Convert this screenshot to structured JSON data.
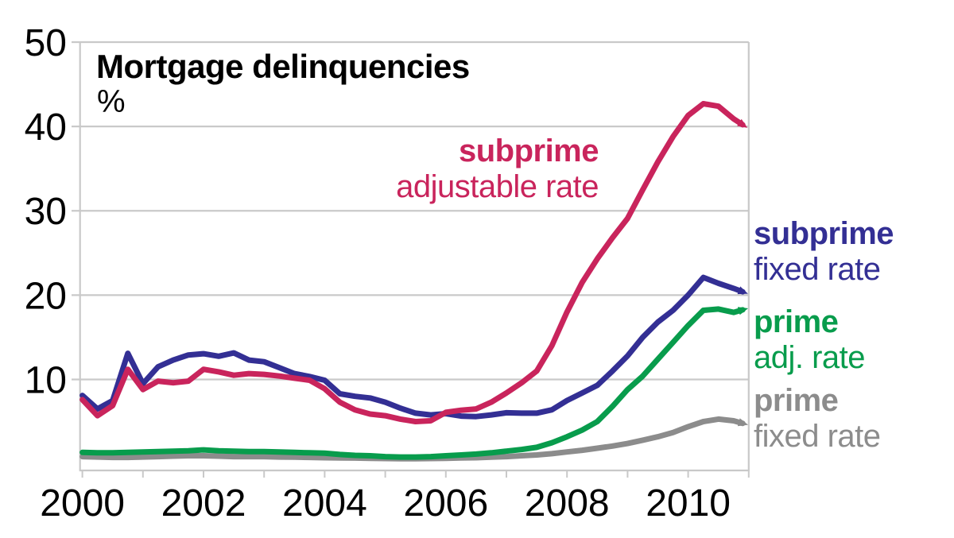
{
  "figure": {
    "title": "Mortgage delinquencies",
    "unit_label": "%"
  },
  "series_labels": {
    "subprime_adjustable": {
      "line1": "subprime",
      "line2": "adjustable rate"
    },
    "subprime_fixed": {
      "line1": "subprime",
      "line2": "fixed rate"
    },
    "prime_adjustable": {
      "line1": "prime",
      "line2": "adj. rate"
    },
    "prime_fixed": {
      "line1": "prime",
      "line2": "fixed rate"
    }
  },
  "colors": {
    "subprime_adjustable": "#C9245C",
    "subprime_fixed": "#332F94",
    "prime_adjustable": "#089C4C",
    "prime_fixed": "#8C8C8C",
    "frame": "#C9C9C9",
    "text": "#000000",
    "background": "#FFFFFF"
  },
  "chart_data": {
    "type": "line",
    "title": "Mortgage delinquencies",
    "ylabel": "%",
    "xlabel": "",
    "grid": true,
    "legend_position": "direct-line-labels",
    "xlim": [
      2000,
      2011
    ],
    "ylim": [
      -0.85,
      50
    ],
    "y_axis": {
      "ticks": [
        10,
        20,
        30,
        40,
        50
      ],
      "labels": [
        "10",
        "20",
        "30",
        "40",
        "50"
      ]
    },
    "x_axis": {
      "ticks": [
        2000,
        2002,
        2004,
        2006,
        2008,
        2010
      ],
      "labels": [
        "2000",
        "2002",
        "2004",
        "2006",
        "2008",
        "2010"
      ],
      "minor_ticks": [
        2000,
        2001,
        2002,
        2003,
        2004,
        2005,
        2006,
        2007,
        2008,
        2009,
        2010,
        2011
      ]
    },
    "x": [
      2000.0,
      2000.25,
      2000.5,
      2000.75,
      2001.0,
      2001.25,
      2001.5,
      2001.75,
      2002.0,
      2002.25,
      2002.5,
      2002.75,
      2003.0,
      2003.25,
      2003.5,
      2003.75,
      2004.0,
      2004.25,
      2004.5,
      2004.75,
      2005.0,
      2005.25,
      2005.5,
      2005.75,
      2006.0,
      2006.25,
      2006.5,
      2006.75,
      2007.0,
      2007.25,
      2007.5,
      2007.75,
      2008.0,
      2008.25,
      2008.5,
      2008.75,
      2009.0,
      2009.25,
      2009.5,
      2009.75,
      2010.0,
      2010.25,
      2010.5,
      2010.75,
      2010.9
    ],
    "series": [
      {
        "key": "prime_fixed",
        "name": "prime fixed rate",
        "color": "#8C8C8C",
        "values": [
          0.85,
          0.8,
          0.75,
          0.75,
          0.8,
          0.85,
          0.9,
          0.95,
          0.95,
          0.9,
          0.85,
          0.85,
          0.85,
          0.8,
          0.78,
          0.75,
          0.72,
          0.7,
          0.68,
          0.65,
          0.62,
          0.6,
          0.6,
          0.62,
          0.65,
          0.7,
          0.72,
          0.78,
          0.85,
          0.95,
          1.05,
          1.2,
          1.4,
          1.6,
          1.85,
          2.1,
          2.4,
          2.8,
          3.2,
          3.7,
          4.4,
          5.0,
          5.3,
          5.1,
          4.8
        ]
      },
      {
        "key": "prime_adjustable",
        "name": "prime adj. rate",
        "color": "#089C4C",
        "values": [
          1.35,
          1.3,
          1.3,
          1.35,
          1.4,
          1.45,
          1.5,
          1.55,
          1.65,
          1.55,
          1.5,
          1.45,
          1.45,
          1.4,
          1.35,
          1.3,
          1.25,
          1.1,
          1.0,
          0.95,
          0.85,
          0.8,
          0.8,
          0.85,
          0.95,
          1.05,
          1.15,
          1.3,
          1.5,
          1.7,
          1.95,
          2.5,
          3.2,
          4.0,
          5.0,
          6.8,
          8.8,
          10.4,
          12.4,
          14.4,
          16.4,
          18.2,
          18.35,
          17.95,
          18.25
        ]
      },
      {
        "key": "subprime_fixed",
        "name": "subprime fixed rate",
        "color": "#332F94",
        "values": [
          8.1,
          6.5,
          7.5,
          13.1,
          9.5,
          11.5,
          12.3,
          12.9,
          13.05,
          12.75,
          13.15,
          12.3,
          12.1,
          11.4,
          10.7,
          10.35,
          9.9,
          8.3,
          8.0,
          7.8,
          7.3,
          6.6,
          6.0,
          5.8,
          5.95,
          5.65,
          5.6,
          5.8,
          6.05,
          6.0,
          6.0,
          6.4,
          7.5,
          8.4,
          9.3,
          11.0,
          12.8,
          15.0,
          16.8,
          18.2,
          20.0,
          22.1,
          21.4,
          20.8,
          20.4
        ]
      },
      {
        "key": "subprime_adjustable",
        "name": "subprime adjustable rate",
        "color": "#C9245C",
        "values": [
          7.6,
          5.7,
          6.9,
          11.2,
          8.8,
          9.8,
          9.6,
          9.8,
          11.2,
          10.9,
          10.5,
          10.7,
          10.6,
          10.4,
          10.15,
          9.9,
          8.9,
          7.3,
          6.4,
          5.9,
          5.7,
          5.3,
          5.0,
          5.1,
          6.1,
          6.35,
          6.5,
          7.3,
          8.4,
          9.6,
          11.0,
          14.0,
          18.0,
          21.5,
          24.3,
          26.8,
          29.1,
          32.5,
          35.8,
          38.8,
          41.3,
          42.7,
          42.4,
          40.9,
          40.2
        ]
      }
    ]
  }
}
